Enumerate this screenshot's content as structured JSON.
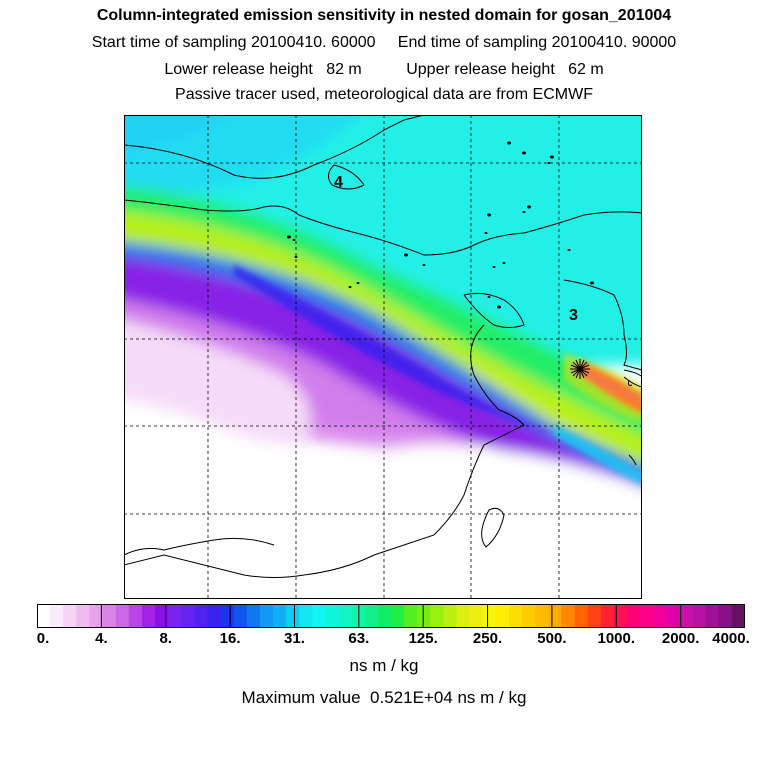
{
  "header": {
    "title": "Column-integrated emission sensitivity in nested domain for gosan_201004",
    "start_label": "Start time of sampling 20100410. 60000",
    "end_label": "End time of sampling 20100410. 90000",
    "lower_label": "Lower release height   82 m",
    "upper_label": "Upper release height   62 m",
    "tracer_note": "Passive tracer used, meteorological data are from ECMWF"
  },
  "map": {
    "labels": [
      {
        "id": "label-4",
        "text": "4"
      },
      {
        "id": "label-3",
        "text": "3"
      }
    ],
    "release_marker": "asterisk-icon"
  },
  "colorbar": {
    "ticks": [
      "0.",
      "4.",
      "8.",
      "16.",
      "31.",
      "63.",
      "125.",
      "250.",
      "500.",
      "1000.",
      "2000.",
      "4000."
    ],
    "units": "ns m / kg",
    "colors": [
      "#ffffff",
      "#fbecfb",
      "#f5d4f5",
      "#eebcf0",
      "#e6a3eb",
      "#d985e8",
      "#cc66e6",
      "#bb44e6",
      "#a322e6",
      "#8811e6",
      "#7a22ee",
      "#6622ee",
      "#4f22ee",
      "#3a22ee",
      "#2233ee",
      "#1155ee",
      "#1177ee",
      "#1199f5",
      "#11b0f5",
      "#11ccf5",
      "#11e6f5",
      "#11f5f5",
      "#11f5dd",
      "#11f5c8",
      "#11f5aa",
      "#11f08a",
      "#11ee66",
      "#22ee44",
      "#55ee22",
      "#77ee11",
      "#99f011",
      "#bbee11",
      "#ddee11",
      "#eeee11",
      "#f5f511",
      "#ffee00",
      "#ffdd00",
      "#ffcc00",
      "#ffbb00",
      "#ffaa00",
      "#ff8800",
      "#ff6600",
      "#ff4411",
      "#ff2233",
      "#ff1155",
      "#ff0077",
      "#ff0088",
      "#f00099",
      "#e000aa",
      "#cc11aa",
      "#b811a5",
      "#a01199",
      "#881188",
      "#661166"
    ]
  },
  "footer": {
    "max_label": "Maximum value  0.521E+04 ns m / kg"
  }
}
